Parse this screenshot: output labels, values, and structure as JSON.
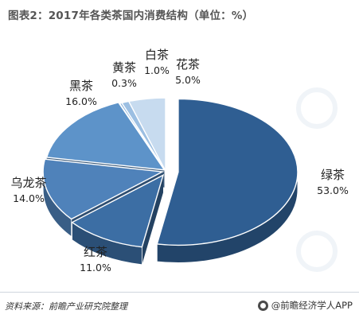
{
  "title": "图表2：2017年各类茶国内消费结构（单位：%）",
  "chart_data": {
    "type": "pie",
    "title": "图表2：2017年各类茶国内消费结构（单位：%）",
    "slices": [
      {
        "name": "绿茶",
        "value": 53.0,
        "label": "53.0%",
        "color": "#2f5e92"
      },
      {
        "name": "红茶",
        "value": 11.0,
        "label": "11.0%",
        "color": "#3c6ea4"
      },
      {
        "name": "乌龙茶",
        "value": 14.0,
        "label": "14.0%",
        "color": "#4f82ba"
      },
      {
        "name": "黑茶",
        "value": 16.0,
        "label": "16.0%",
        "color": "#5d93c9"
      },
      {
        "name": "黄茶",
        "value": 0.3,
        "label": "0.3%",
        "color": "#7ba8d6"
      },
      {
        "name": "白茶",
        "value": 1.0,
        "label": "1.0%",
        "color": "#9cbfe2"
      },
      {
        "name": "花茶",
        "value": 5.0,
        "label": "5.0%",
        "color": "#c7dbef"
      }
    ],
    "legend": "none",
    "three_d": true
  },
  "footer": {
    "source": "资料来源：前瞻产业研究院整理",
    "brand": "@前瞻经济学人APP"
  }
}
